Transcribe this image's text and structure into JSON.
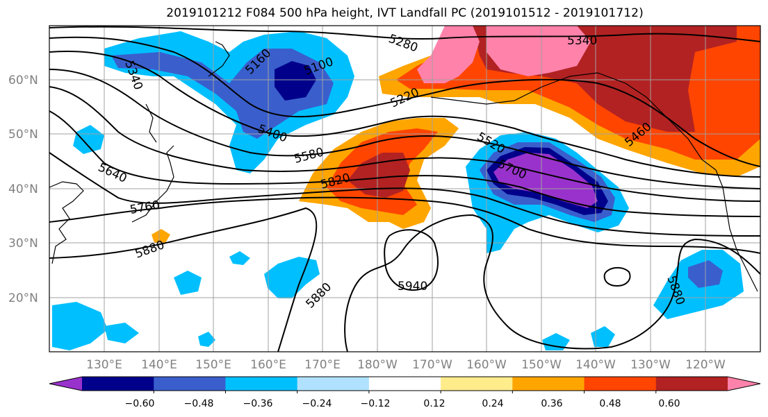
{
  "title": "2019101212 F084 500 hPa height, IVT Landfall PC (2019101512 - 2019101712)",
  "map": {
    "lat_labels": [
      "60°N",
      "50°N",
      "40°N",
      "30°N",
      "20°N"
    ],
    "lon_labels": [
      "130°E",
      "140°E",
      "150°E",
      "160°E",
      "170°E",
      "180°W",
      "170°W",
      "160°W",
      "150°W",
      "140°W",
      "130°W",
      "120°W"
    ],
    "contour_labels": [
      "5340",
      "5280",
      "5340",
      "5160",
      "5100",
      "5220",
      "5400",
      "5520",
      "5460",
      "5580",
      "5640",
      "5700",
      "5820",
      "5760",
      "5880",
      "5880",
      "5940",
      "5880"
    ]
  },
  "colorbar": {
    "ticks": [
      "−0.60",
      "−0.48",
      "−0.36",
      "−0.24",
      "−0.12",
      "0.12",
      "0.24",
      "0.36",
      "0.48",
      "0.60"
    ],
    "colors": [
      "#9932cc",
      "#00008b",
      "#3a5fcd",
      "#00bfff",
      "#b0e2ff",
      "#ffffff",
      "#ffec8b",
      "#ffa500",
      "#ff4500",
      "#b22222",
      "#ff82ab"
    ]
  }
}
